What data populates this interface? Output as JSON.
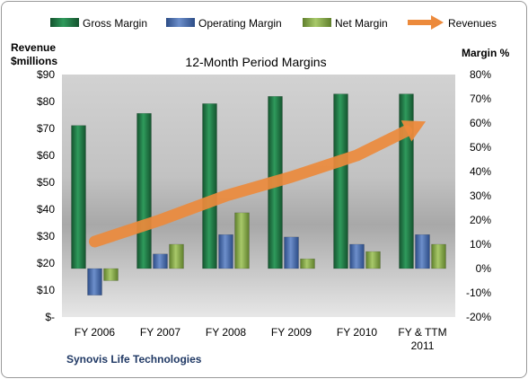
{
  "chart_data": {
    "type": "bar",
    "title": "12-Month Period Margins",
    "categories": [
      [
        "FY 2006"
      ],
      [
        "FY 2007"
      ],
      [
        "FY 2008"
      ],
      [
        "FY 2009"
      ],
      [
        "FY 2010"
      ],
      [
        "FY & TTM",
        "2011"
      ]
    ],
    "series": [
      {
        "name": "Gross Margin",
        "type": "bar",
        "axis": "right",
        "color": "#1e7a45",
        "values": [
          59,
          64,
          68,
          71,
          72,
          72
        ]
      },
      {
        "name": "Operating Margin",
        "type": "bar",
        "axis": "right",
        "color": "#4f72b0",
        "values": [
          -11,
          6,
          14,
          13,
          10,
          14
        ]
      },
      {
        "name": "Net Margin",
        "type": "bar",
        "axis": "right",
        "color": "#8db050",
        "values": [
          -5,
          10,
          23,
          4,
          7,
          10
        ]
      },
      {
        "name": "Revenues",
        "type": "line",
        "axis": "left",
        "color": "#ec8a3c",
        "values": [
          28,
          36,
          45,
          52,
          60,
          72
        ]
      }
    ],
    "left_axis": {
      "label_lines": [
        "Revenue",
        "$millions"
      ],
      "min": 0,
      "max": 90,
      "step": 10,
      "tick_labels": [
        "$-",
        "$10",
        "$20",
        "$30",
        "$40",
        "$50",
        "$60",
        "$70",
        "$80",
        "$90"
      ]
    },
    "right_axis": {
      "label": "Margin %",
      "min": -20,
      "max": 80,
      "step": 10,
      "tick_labels": [
        "-20%",
        "-10%",
        "0%",
        "10%",
        "20%",
        "30%",
        "40%",
        "50%",
        "60%",
        "70%",
        "80%"
      ]
    },
    "grid": false,
    "legend_position": "top",
    "source_label": "Synovis Life Technologies"
  }
}
